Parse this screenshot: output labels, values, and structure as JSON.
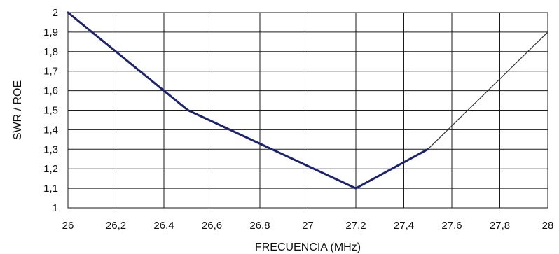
{
  "chart_data": {
    "type": "line",
    "title": "",
    "xlabel": "FRECUENCIA (MHz)",
    "ylabel": "SWR / ROE",
    "xlim": [
      26,
      28
    ],
    "ylim": [
      1,
      2
    ],
    "grid": true,
    "x_ticks": [
      26,
      26.2,
      26.4,
      26.6,
      26.8,
      27,
      27.2,
      27.4,
      27.6,
      27.8,
      28
    ],
    "x_tick_labels": [
      "26",
      "26,2",
      "26,4",
      "26,6",
      "26,8",
      "27",
      "27,2",
      "27,4",
      "27,6",
      "27,8",
      "28"
    ],
    "y_ticks": [
      1,
      1.1,
      1.2,
      1.3,
      1.4,
      1.5,
      1.6,
      1.7,
      1.8,
      1.9,
      2
    ],
    "y_tick_labels": [
      "1",
      "1,1",
      "1,2",
      "1,3",
      "1,4",
      "1,5",
      "1,6",
      "1,7",
      "1,8",
      "1,9",
      "2"
    ],
    "series": [
      {
        "style": "thick",
        "color": "#1c2272",
        "x": [
          26,
          26.5,
          27.2,
          27.5
        ],
        "y": [
          2.0,
          1.5,
          1.1,
          1.3
        ]
      },
      {
        "style": "thin",
        "color": "#333333",
        "x": [
          27.5,
          28
        ],
        "y": [
          1.3,
          1.9
        ]
      }
    ]
  }
}
